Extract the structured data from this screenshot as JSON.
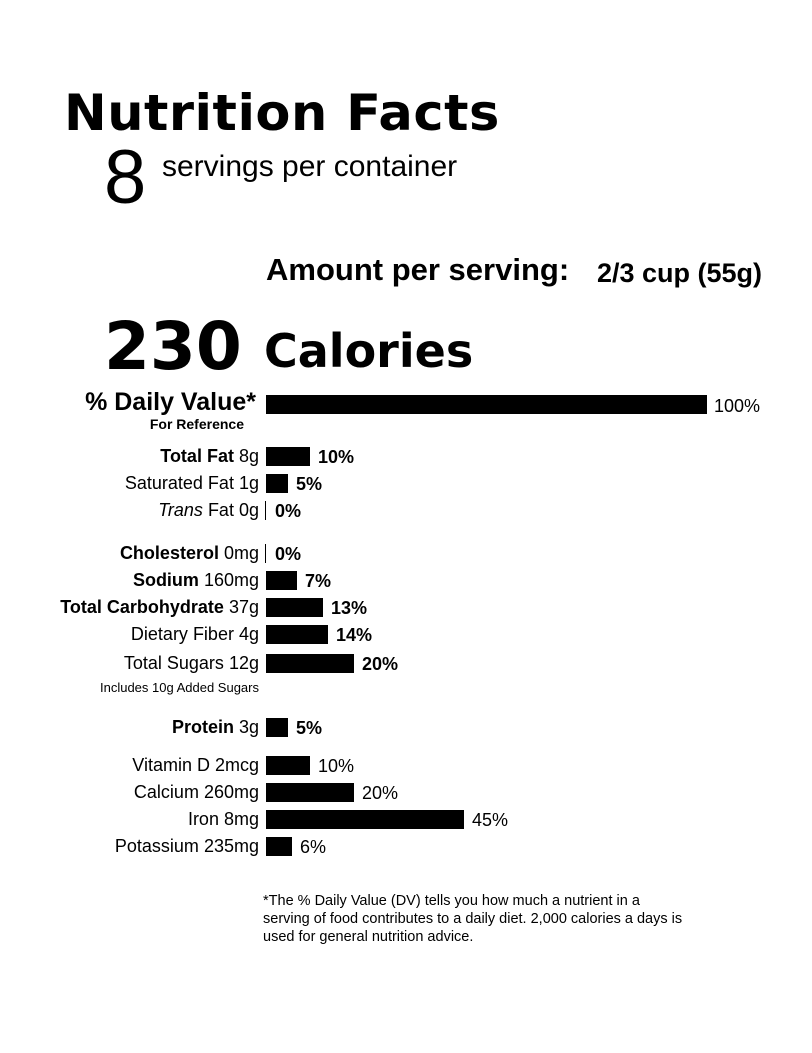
{
  "header": {
    "title": "Nutrition Facts",
    "servings_count": "8",
    "servings_label": "servings per container",
    "amount_label": "Amount per serving:",
    "serving_size": "2/3 cup (55g)",
    "calories_value": "230",
    "calories_label": "Calories",
    "dv_heading": "% Daily Value*",
    "dv_subheading": "For Reference",
    "reference_label": "100%",
    "added_sugars_note": "Includes 10g Added Sugars",
    "footnote": "*The % Daily Value (DV) tells you how much a nutrient in a serving of food contributes to a daily diet. 2,000 calories a days is used for general nutrition advice."
  },
  "chart_data": {
    "type": "bar",
    "orientation": "horizontal",
    "reference": 100,
    "categories": [
      "Total Fat 8g",
      "Saturated Fat 1g",
      "Trans Fat 0g",
      "Cholesterol 0mg",
      "Sodium 160mg",
      "Total Carbohydrate 37g",
      "Dietary Fiber 4g",
      "Total Sugars 12g",
      "Protein 3g",
      "Vitamin D 2mcg",
      "Calcium 260mg",
      "Iron 8mg",
      "Potassium 235mg"
    ],
    "values": [
      10,
      5,
      0,
      0,
      7,
      13,
      14,
      20,
      5,
      10,
      20,
      45,
      6
    ],
    "rows": [
      {
        "name": "Total Fat",
        "amount": "8g",
        "percent": "10%",
        "value": 10,
        "bold_name": true,
        "italic_name": false,
        "bold_pct": true
      },
      {
        "name": "Saturated Fat",
        "amount": "1g",
        "percent": "5%",
        "value": 5,
        "bold_name": false,
        "italic_name": false,
        "bold_pct": true
      },
      {
        "name": "Trans",
        "suffix": " Fat",
        "amount": "0g",
        "percent": "0%",
        "value": 0,
        "bold_name": false,
        "italic_name": true,
        "bold_pct": true
      },
      {
        "name": "Cholesterol",
        "amount": "0mg",
        "percent": "0%",
        "value": 0,
        "bold_name": true,
        "italic_name": false,
        "bold_pct": true
      },
      {
        "name": "Sodium",
        "amount": "160mg",
        "percent": "7%",
        "value": 7,
        "bold_name": true,
        "italic_name": false,
        "bold_pct": true
      },
      {
        "name": "Total Carbohydrate",
        "amount": "37g",
        "percent": "13%",
        "value": 13,
        "bold_name": true,
        "italic_name": false,
        "bold_pct": true
      },
      {
        "name": "Dietary Fiber",
        "amount": "4g",
        "percent": "14%",
        "value": 14,
        "bold_name": false,
        "italic_name": false,
        "bold_pct": true
      },
      {
        "name": "Total Sugars",
        "amount": "12g",
        "percent": "20%",
        "value": 20,
        "bold_name": false,
        "italic_name": false,
        "bold_pct": true
      },
      {
        "name": "Protein",
        "amount": "3g",
        "percent": "5%",
        "value": 5,
        "bold_name": true,
        "italic_name": false,
        "bold_pct": true
      },
      {
        "name": "Vitamin D",
        "amount": "2mcg",
        "percent": "10%",
        "value": 10,
        "bold_name": false,
        "italic_name": false,
        "bold_pct": false
      },
      {
        "name": "Calcium",
        "amount": "260mg",
        "percent": "20%",
        "value": 20,
        "bold_name": false,
        "italic_name": false,
        "bold_pct": false
      },
      {
        "name": "Iron",
        "amount": "8mg",
        "percent": "45%",
        "value": 45,
        "bold_name": false,
        "italic_name": false,
        "bold_pct": false
      },
      {
        "name": "Potassium",
        "amount": "235mg",
        "percent": "6%",
        "value": 6,
        "bold_name": false,
        "italic_name": false,
        "bold_pct": false
      }
    ],
    "bar_color": "#000000"
  }
}
